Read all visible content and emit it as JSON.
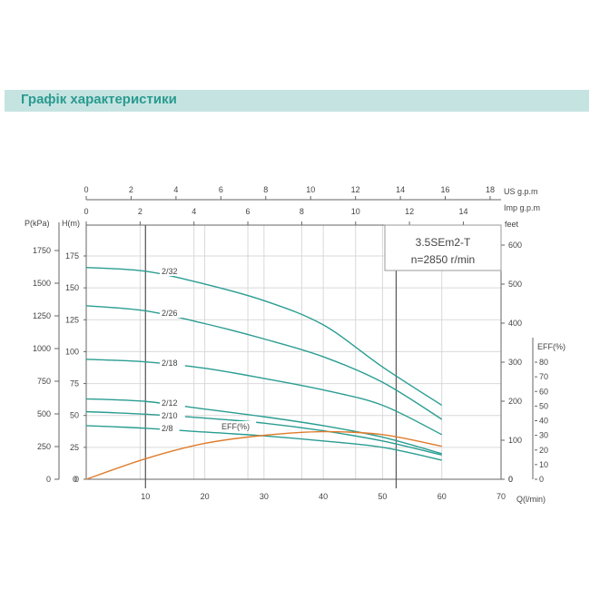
{
  "banner": {
    "title": "Графік характеристики"
  },
  "model_box": {
    "model": "3.5SEm2-T",
    "speed": "n=2850 r/min"
  },
  "axes": {
    "left_outer_label": "P(kPa)",
    "left_inner_label": "H(m)",
    "right_feet_label": "feet",
    "right_eff_label": "EFF(%)",
    "bottom_label": "Q(l/min)",
    "top_us_label": "US  g.p.m",
    "top_imp_label": "Imp  g.p.m"
  },
  "chart_data": {
    "type": "line",
    "title": "Графік характеристики",
    "subtitle": "3.5SEm2-T n=2850 r/min",
    "xlabel": "Q(l/min)",
    "ylabel": "H(m)",
    "xlim": [
      0,
      70
    ],
    "ylim": [
      0,
      175
    ],
    "grid": true,
    "x_ticks": [
      10,
      20,
      30,
      40,
      50,
      60,
      70
    ],
    "h_ticks": [
      0,
      25,
      50,
      75,
      100,
      125,
      150,
      175
    ],
    "p_ticks": [
      0,
      250,
      500,
      750,
      1000,
      1250,
      1500,
      1750
    ],
    "feet_ticks": [
      0,
      100,
      200,
      300,
      400,
      500,
      600
    ],
    "eff_ticks": [
      0,
      10,
      20,
      30,
      40,
      50,
      60,
      70,
      80
    ],
    "us_gpm_ticks": [
      0,
      2,
      4,
      6,
      8,
      10,
      12,
      14,
      16,
      18
    ],
    "imp_gpm_ticks": [
      0,
      2,
      4,
      6,
      8,
      10,
      12,
      14
    ],
    "x": [
      0,
      10,
      20,
      30,
      40,
      50,
      60
    ],
    "series": [
      {
        "name": "2/32",
        "axis": "H(m)",
        "values": [
          166,
          163,
          153,
          140,
          121,
          88,
          58
        ]
      },
      {
        "name": "2/26",
        "axis": "H(m)",
        "values": [
          136,
          132,
          122,
          110,
          96,
          76,
          47
        ]
      },
      {
        "name": "2/18",
        "axis": "H(m)",
        "values": [
          94,
          92,
          87,
          79,
          70,
          58,
          35
        ]
      },
      {
        "name": "2/12",
        "axis": "H(m)",
        "values": [
          63,
          61,
          55,
          49,
          42,
          33,
          20
        ]
      },
      {
        "name": "2/10",
        "axis": "H(m)",
        "values": [
          53,
          51,
          48,
          44,
          38,
          30,
          19
        ]
      },
      {
        "name": "2/8",
        "axis": "H(m)",
        "values": [
          42,
          40,
          37,
          34,
          30,
          25,
          15
        ]
      },
      {
        "name": "EFF(%)",
        "axis": "EFF(%)",
        "values": [
          0,
          14,
          24.5,
          30,
          32.5,
          30.5,
          22.5
        ]
      }
    ],
    "vertical_markers_q": [
      10,
      52.3
    ],
    "annotations": [
      "2/32",
      "2/26",
      "2/18",
      "2/12",
      "2/10",
      "2/8",
      "EFF(%)"
    ]
  }
}
